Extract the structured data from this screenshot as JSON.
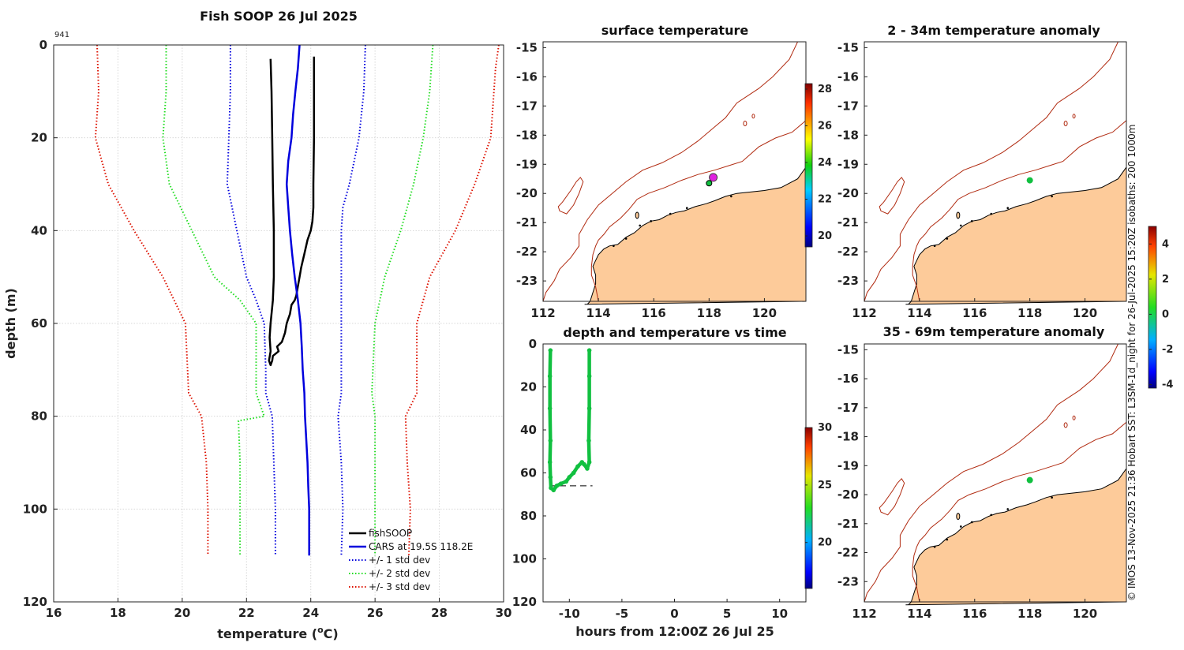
{
  "figure": {
    "title": "Fish SOOP 26 Jul 2025",
    "id_label": "941",
    "credit": "© IMOS 13-Nov-2025 21:36 Hobart SST: L3SM-1d_night for 26-Jul-2025 15:20Z isobaths: 200  1000m"
  },
  "colors": {
    "fishsoop": "#000000",
    "cars": "#0000dd",
    "std1": "#0000dd",
    "std2": "#22dd22",
    "std3": "#dd1100",
    "land": "#fdcb9a",
    "isobath": "#b02a10",
    "obs_green": "#11c040",
    "obs_magenta": "#e020e0"
  },
  "chart_data": [
    {
      "type": "line",
      "panel": "profile",
      "title": "Fish SOOP 26 Jul 2025",
      "xlabel": "temperature (°C)",
      "xlabel_main": "temperature (",
      "xlabel_sup": "o",
      "xlabel_unit": "C)",
      "ylabel": "depth (m)",
      "xlim": [
        16,
        30
      ],
      "ylim": [
        120,
        0
      ],
      "xticks": [
        16,
        18,
        20,
        22,
        24,
        26,
        28,
        30
      ],
      "yticks": [
        0,
        20,
        40,
        60,
        80,
        100,
        120
      ],
      "legend_position": "bottom-right",
      "series": [
        {
          "name": "fishSOOP",
          "color_key": "fishsoop",
          "dash": "",
          "width": 2.5,
          "points": [
            [
              22.75,
              3
            ],
            [
              22.78,
              10
            ],
            [
              22.8,
              20
            ],
            [
              22.82,
              30
            ],
            [
              22.85,
              40
            ],
            [
              22.85,
              50
            ],
            [
              22.82,
              55
            ],
            [
              22.75,
              60
            ],
            [
              22.72,
              63
            ],
            [
              22.75,
              66
            ],
            [
              22.7,
              68
            ],
            [
              22.75,
              69
            ],
            [
              22.8,
              68
            ],
            [
              22.82,
              67
            ],
            [
              23.0,
              66
            ],
            [
              22.95,
              65
            ],
            [
              23.1,
              64
            ],
            [
              23.2,
              62
            ],
            [
              23.25,
              60
            ],
            [
              23.3,
              59
            ],
            [
              23.35,
              58
            ],
            [
              23.4,
              56
            ],
            [
              23.5,
              55
            ],
            [
              23.55,
              54
            ],
            [
              23.6,
              52
            ],
            [
              23.65,
              50
            ],
            [
              23.7,
              48
            ],
            [
              23.8,
              45
            ],
            [
              23.9,
              42
            ],
            [
              24.0,
              40
            ],
            [
              24.05,
              38
            ],
            [
              24.08,
              35
            ],
            [
              24.08,
              30
            ],
            [
              24.1,
              20
            ],
            [
              24.1,
              10
            ],
            [
              24.1,
              2.5
            ]
          ]
        },
        {
          "name": "CARS at 19.5S 118.2E",
          "color_key": "cars",
          "dash": "",
          "width": 2.5,
          "points": [
            [
              23.65,
              0
            ],
            [
              23.6,
              5
            ],
            [
              23.52,
              10
            ],
            [
              23.45,
              15
            ],
            [
              23.4,
              20
            ],
            [
              23.3,
              25
            ],
            [
              23.25,
              30
            ],
            [
              23.3,
              35
            ],
            [
              23.35,
              40
            ],
            [
              23.42,
              45
            ],
            [
              23.5,
              50
            ],
            [
              23.6,
              55
            ],
            [
              23.68,
              60
            ],
            [
              23.72,
              65
            ],
            [
              23.75,
              70
            ],
            [
              23.8,
              75
            ],
            [
              23.82,
              80
            ],
            [
              23.86,
              85
            ],
            [
              23.9,
              90
            ],
            [
              23.92,
              95
            ],
            [
              23.95,
              100
            ],
            [
              23.95,
              110
            ]
          ]
        },
        {
          "name": "+/- 1 std dev",
          "color_key": "std1",
          "dash": "1.5 2.5",
          "width": 2,
          "points": [
            [
              21.5,
              0
            ],
            [
              21.5,
              10
            ],
            [
              21.45,
              20
            ],
            [
              21.4,
              30
            ],
            [
              21.7,
              40
            ],
            [
              22.0,
              50
            ],
            [
              22.3,
              55
            ],
            [
              22.55,
              60
            ],
            [
              22.6,
              70
            ],
            [
              22.6,
              75
            ],
            [
              22.8,
              80
            ],
            [
              22.85,
              90
            ],
            [
              22.9,
              100
            ],
            [
              22.9,
              110
            ]
          ]
        },
        {
          "name": "+/- 1 std dev (upper)",
          "color_key": "std1",
          "dash": "1.5 2.5",
          "width": 2,
          "legend": false,
          "points": [
            [
              25.7,
              0
            ],
            [
              25.65,
              10
            ],
            [
              25.5,
              20
            ],
            [
              25.2,
              30
            ],
            [
              25.0,
              35
            ],
            [
              24.95,
              40
            ],
            [
              24.95,
              60
            ],
            [
              24.95,
              75
            ],
            [
              24.85,
              80
            ],
            [
              24.95,
              90
            ],
            [
              25.0,
              100
            ],
            [
              24.95,
              110
            ]
          ]
        },
        {
          "name": "+/- 2 std dev",
          "color_key": "std2",
          "dash": "1.5 2.5",
          "width": 2,
          "points": [
            [
              19.5,
              0
            ],
            [
              19.5,
              10
            ],
            [
              19.4,
              20
            ],
            [
              19.6,
              30
            ],
            [
              20.3,
              40
            ],
            [
              21.0,
              50
            ],
            [
              21.8,
              55
            ],
            [
              22.3,
              60
            ],
            [
              22.3,
              75
            ],
            [
              22.55,
              80
            ],
            [
              21.75,
              81
            ],
            [
              21.8,
              90
            ],
            [
              21.8,
              100
            ],
            [
              21.8,
              110
            ]
          ]
        },
        {
          "name": "+/- 2 std dev (upper)",
          "color_key": "std2",
          "dash": "1.5 2.5",
          "width": 2,
          "legend": false,
          "points": [
            [
              27.8,
              0
            ],
            [
              27.7,
              10
            ],
            [
              27.5,
              20
            ],
            [
              27.2,
              30
            ],
            [
              26.8,
              40
            ],
            [
              26.3,
              50
            ],
            [
              26.0,
              60
            ],
            [
              25.9,
              75
            ],
            [
              26.0,
              80
            ],
            [
              26.0,
              90
            ],
            [
              26.0,
              100
            ],
            [
              26.0,
              110
            ]
          ]
        },
        {
          "name": "+/- 3 std dev",
          "color_key": "std3",
          "dash": "1.5 2.5",
          "width": 2,
          "points": [
            [
              17.35,
              0
            ],
            [
              17.4,
              10
            ],
            [
              17.3,
              20
            ],
            [
              17.7,
              30
            ],
            [
              18.5,
              40
            ],
            [
              19.4,
              50
            ],
            [
              20.1,
              60
            ],
            [
              20.2,
              75
            ],
            [
              20.6,
              80
            ],
            [
              20.75,
              90
            ],
            [
              20.8,
              100
            ],
            [
              20.8,
              110
            ]
          ]
        },
        {
          "name": "+/- 3 std dev (upper)",
          "color_key": "std3",
          "dash": "1.5 2.5",
          "width": 2,
          "legend": false,
          "points": [
            [
              29.85,
              0
            ],
            [
              29.75,
              5
            ],
            [
              29.6,
              20
            ],
            [
              29.1,
              30
            ],
            [
              28.5,
              40
            ],
            [
              27.7,
              50
            ],
            [
              27.3,
              60
            ],
            [
              27.3,
              75
            ],
            [
              26.95,
              80
            ],
            [
              27.0,
              90
            ],
            [
              27.1,
              100
            ],
            [
              27.05,
              110
            ]
          ]
        }
      ]
    },
    {
      "type": "map",
      "panel": "sst",
      "title": "surface temperature",
      "xlim": [
        112,
        121.5
      ],
      "ylim": [
        -23.7,
        -14.8
      ],
      "xticks": [
        112,
        114,
        116,
        118,
        120
      ],
      "yticks": [
        -15,
        -16,
        -17,
        -18,
        -19,
        -20,
        -21,
        -22,
        -23
      ],
      "markers": [
        {
          "lon": 118.15,
          "lat": -19.45,
          "color_key": "obs_magenta"
        },
        {
          "lon": 118.0,
          "lat": -19.65,
          "color_key": "obs_green"
        }
      ],
      "colorbar": {
        "min": 19.4,
        "max": 28.3,
        "ticks": [
          20,
          22,
          24,
          26,
          28
        ]
      }
    },
    {
      "type": "map",
      "panel": "anom_shallow",
      "title": "2 - 34m temperature anomaly",
      "xlim": [
        112,
        121.5
      ],
      "ylim": [
        -23.7,
        -14.8
      ],
      "xticks": [
        112,
        114,
        116,
        118,
        120
      ],
      "yticks": [
        -15,
        -16,
        -17,
        -18,
        -19,
        -20,
        -21,
        -22,
        -23
      ],
      "markers": [
        {
          "lon": 118.0,
          "lat": -19.55,
          "color_key": "obs_green"
        }
      ]
    },
    {
      "type": "map",
      "panel": "anom_deep",
      "title": "35 - 69m temperature anomaly",
      "xlim": [
        112,
        121.5
      ],
      "ylim": [
        -23.7,
        -14.8
      ],
      "xticks": [
        112,
        114,
        116,
        118,
        120
      ],
      "yticks": [
        -15,
        -16,
        -17,
        -18,
        -19,
        -20,
        -21,
        -22,
        -23
      ],
      "markers": [
        {
          "lon": 118.0,
          "lat": -19.5,
          "color_key": "obs_green"
        }
      ],
      "colorbar": {
        "min": -4.2,
        "max": 5,
        "ticks": [
          -4,
          -2,
          0,
          2,
          4
        ]
      }
    },
    {
      "type": "scatter",
      "panel": "time",
      "title": "depth and temperature vs time",
      "xlabel": "hours from 12:00Z 26 Jul 25",
      "xlim": [
        -12.5,
        12.5
      ],
      "ylim": [
        120,
        0
      ],
      "xticks": [
        -10,
        -5,
        0,
        5,
        10
      ],
      "yticks": [
        0,
        20,
        40,
        60,
        80,
        100,
        120
      ],
      "track": [
        [
          -11.8,
          3
        ],
        [
          -11.85,
          15
        ],
        [
          -11.85,
          30
        ],
        [
          -11.8,
          45
        ],
        [
          -11.85,
          55
        ],
        [
          -11.8,
          62
        ],
        [
          -11.75,
          67
        ],
        [
          -11.5,
          68
        ],
        [
          -11.2,
          66
        ],
        [
          -10.8,
          65
        ],
        [
          -10.3,
          64
        ],
        [
          -10.0,
          62
        ],
        [
          -9.6,
          60
        ],
        [
          -9.2,
          57
        ],
        [
          -8.8,
          55
        ],
        [
          -8.6,
          56
        ],
        [
          -8.3,
          58
        ],
        [
          -8.1,
          55
        ],
        [
          -8.15,
          45
        ],
        [
          -8.1,
          30
        ],
        [
          -8.1,
          15
        ],
        [
          -8.1,
          3
        ]
      ],
      "marker_color_key": "obs_green",
      "seafloor": {
        "x": [
          -11.9,
          -7.8
        ],
        "depth": 66
      },
      "colorbar": {
        "min": 16,
        "max": 30,
        "ticks": [
          20,
          25,
          30
        ]
      }
    }
  ]
}
